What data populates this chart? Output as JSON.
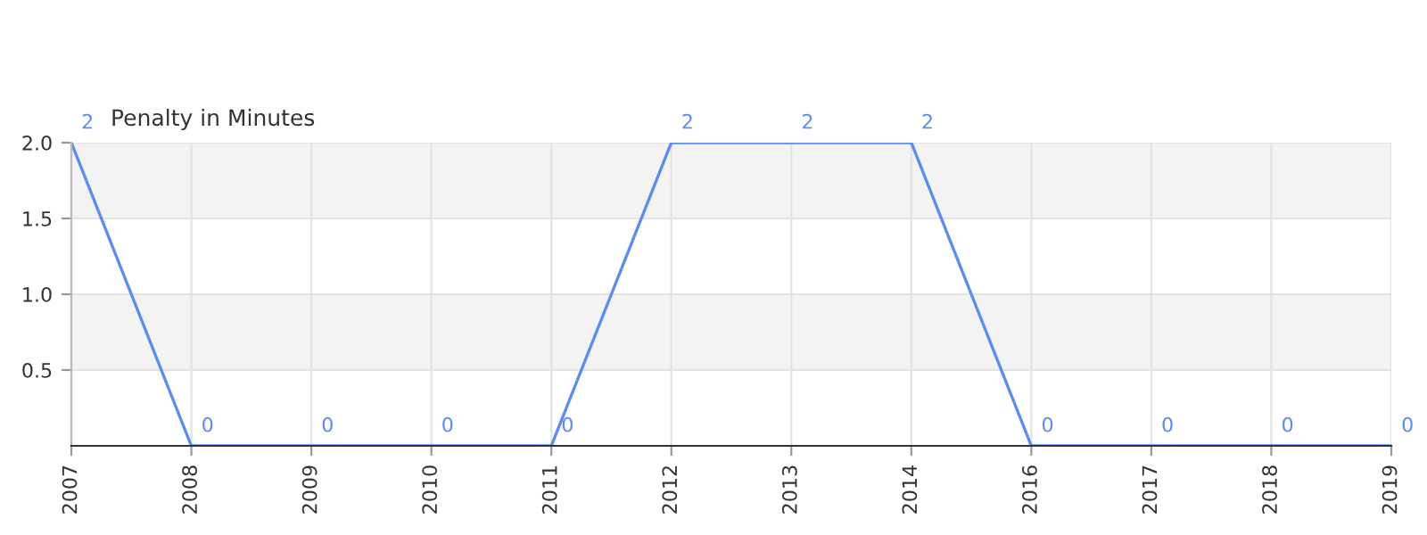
{
  "chart_data": {
    "type": "line",
    "title": "Penalty in Minutes",
    "categories": [
      "2007",
      "2008",
      "2009",
      "2010",
      "2011",
      "2012",
      "2013",
      "2014",
      "2016",
      "2017",
      "2018",
      "2019"
    ],
    "series": [
      {
        "color": "#5b8def",
        "values": [
          2,
          0,
          0,
          0,
          0,
          2,
          2,
          2,
          0,
          0,
          0,
          0
        ]
      }
    ],
    "ylim": [
      0,
      2
    ],
    "yticks": [
      0.5,
      {
        "value": 1,
        "label": "1.0"
      },
      1.5,
      {
        "value": 2,
        "label": "2.0"
      }
    ],
    "bands": [
      {
        "axis": "y",
        "from": 0.5,
        "to": 1.0,
        "color": "#f3f3f3"
      },
      {
        "axis": "y",
        "from": 1.5,
        "to": 2.0,
        "color": "#f3f3f3"
      }
    ],
    "data_labels": true,
    "grid": true,
    "legend": false,
    "marker": "none",
    "line_style": "solid"
  }
}
